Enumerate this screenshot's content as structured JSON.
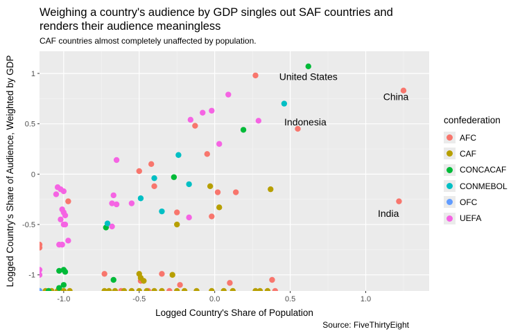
{
  "title": "Weighing a country's audience by GDP singles out SAF countries and renders their audience meaningless",
  "subtitle": "CAF countries almost completely unaffected by population.",
  "source": "Source: FiveThirtyEight",
  "chart_data": {
    "type": "scatter",
    "xlabel": "Logged Country's Share of Population",
    "ylabel": "Logged Country's Share of Audience, Weighted by GDP",
    "xlim": [
      -1.16,
      1.42
    ],
    "ylim": [
      -1.16,
      1.22
    ],
    "xticks": [
      -1.0,
      -0.5,
      0.0,
      0.5,
      1.0
    ],
    "xtick_labels": [
      "-1.0",
      "-0.5",
      "0.0",
      "0.5",
      "1.0"
    ],
    "yticks": [
      -1,
      -0.5,
      0,
      0.5,
      1
    ],
    "ytick_labels": [
      "-1",
      "-0.5",
      "0",
      "0.5",
      "1"
    ],
    "grid": true,
    "legend_title": "confederation",
    "legend_position": "right",
    "colors": {
      "AFC": "#F8766D",
      "CAF": "#B79F00",
      "CONCACAF": "#00BA38",
      "CONMEBOL": "#00BFC4",
      "OFC": "#619CFF",
      "UEFA": "#F564E3"
    },
    "series": [
      {
        "name": "AFC",
        "points": [
          [
            1.25,
            0.83
          ],
          [
            1.22,
            -0.27
          ],
          [
            0.55,
            0.45
          ],
          [
            0.27,
            0.98
          ],
          [
            -0.13,
            0.48
          ],
          [
            -0.5,
            0.03
          ],
          [
            -0.42,
            0.1
          ],
          [
            -0.4,
            -0.12
          ],
          [
            -0.25,
            -0.38
          ],
          [
            -0.05,
            0.2
          ],
          [
            0.02,
            -0.18
          ],
          [
            0.14,
            -0.18
          ],
          [
            -0.02,
            -0.42
          ],
          [
            -0.97,
            -0.27
          ],
          [
            -1.16,
            -0.7
          ],
          [
            -1.16,
            -0.73
          ],
          [
            -0.73,
            -0.99
          ],
          [
            -0.49,
            -1.06
          ],
          [
            -0.35,
            -0.99
          ],
          [
            -0.23,
            -1.1
          ],
          [
            0.1,
            -1.08
          ],
          [
            0.38,
            -1.05
          ],
          [
            0.4,
            -1.16
          ],
          [
            -0.62,
            -1.16
          ],
          [
            -0.44,
            -1.16
          ],
          [
            -0.3,
            -1.16
          ]
        ]
      },
      {
        "name": "CAF",
        "points": [
          [
            0.37,
            -0.15
          ],
          [
            0.03,
            -0.33
          ],
          [
            -0.25,
            -0.5
          ],
          [
            -0.03,
            -0.12
          ],
          [
            -0.5,
            -0.99
          ],
          [
            -0.49,
            -1.03
          ],
          [
            -0.47,
            -1.06
          ],
          [
            -0.28,
            -1.0
          ],
          [
            -1.16,
            -1.16
          ],
          [
            -1.12,
            -1.16
          ],
          [
            -1.08,
            -1.16
          ],
          [
            -1.04,
            -1.16
          ],
          [
            -1.0,
            -1.16
          ],
          [
            -0.96,
            -1.16
          ],
          [
            -0.73,
            -1.16
          ],
          [
            -0.7,
            -1.16
          ],
          [
            -0.66,
            -1.16
          ],
          [
            -0.6,
            -1.16
          ],
          [
            -0.55,
            -1.16
          ],
          [
            -0.5,
            -1.16
          ],
          [
            -0.45,
            -1.16
          ],
          [
            -0.4,
            -1.16
          ],
          [
            -0.35,
            -1.16
          ],
          [
            -0.25,
            -1.16
          ],
          [
            -0.2,
            -1.16
          ],
          [
            -0.12,
            -1.16
          ],
          [
            -0.02,
            -1.16
          ],
          [
            0.06,
            -1.16
          ],
          [
            0.12,
            -1.16
          ],
          [
            0.27,
            -1.16
          ],
          [
            0.3,
            -1.16
          ],
          [
            0.35,
            -1.16
          ]
        ]
      },
      {
        "name": "CONCACAF",
        "points": [
          [
            0.62,
            1.07
          ],
          [
            0.19,
            0.44
          ],
          [
            -0.27,
            -0.03
          ],
          [
            -0.72,
            -0.53
          ],
          [
            -0.67,
            -1.05
          ],
          [
            -1.03,
            -0.96
          ],
          [
            -1.0,
            -0.95
          ],
          [
            -0.99,
            -0.97
          ],
          [
            -1.0,
            -1.1
          ],
          [
            -1.03,
            -1.13
          ],
          [
            -1.1,
            -1.16
          ]
        ]
      },
      {
        "name": "CONMEBOL",
        "points": [
          [
            0.46,
            0.7
          ],
          [
            -0.24,
            0.19
          ],
          [
            -0.17,
            -0.1
          ],
          [
            -0.4,
            -0.04
          ],
          [
            -0.49,
            -0.24
          ],
          [
            -0.35,
            -0.37
          ],
          [
            -0.71,
            -0.49
          ]
        ]
      },
      {
        "name": "OFC",
        "points": [
          [
            -1.16,
            -1.16
          ]
        ]
      },
      {
        "name": "UEFA",
        "points": [
          [
            0.09,
            0.79
          ],
          [
            -0.08,
            0.61
          ],
          [
            -0.02,
            0.63
          ],
          [
            -0.16,
            0.54
          ],
          [
            0.29,
            0.53
          ],
          [
            0.03,
            0.3
          ],
          [
            -0.65,
            0.14
          ],
          [
            -1.04,
            -0.13
          ],
          [
            -1.02,
            -0.15
          ],
          [
            -1.0,
            -0.17
          ],
          [
            -1.05,
            -0.2
          ],
          [
            -0.67,
            -0.21
          ],
          [
            -0.68,
            -0.29
          ],
          [
            -0.65,
            -0.3
          ],
          [
            -0.55,
            -0.29
          ],
          [
            -1.01,
            -0.35
          ],
          [
            -1.0,
            -0.38
          ],
          [
            -0.99,
            -0.41
          ],
          [
            -1.02,
            -0.45
          ],
          [
            -0.99,
            -0.5
          ],
          [
            -1.0,
            -0.5
          ],
          [
            -0.68,
            -0.52
          ],
          [
            -0.17,
            -0.43
          ],
          [
            -0.97,
            -0.66
          ],
          [
            -1.03,
            -0.7
          ],
          [
            -1.01,
            -0.7
          ],
          [
            -1.16,
            -0.95
          ],
          [
            -1.16,
            -1.0
          ]
        ]
      }
    ],
    "annotations": [
      {
        "text": "United States",
        "x": 0.62,
        "y": 0.97
      },
      {
        "text": "China",
        "x": 1.2,
        "y": 0.77
      },
      {
        "text": "Indonesia",
        "x": 0.6,
        "y": 0.52
      },
      {
        "text": "India",
        "x": 1.15,
        "y": -0.39
      }
    ]
  }
}
